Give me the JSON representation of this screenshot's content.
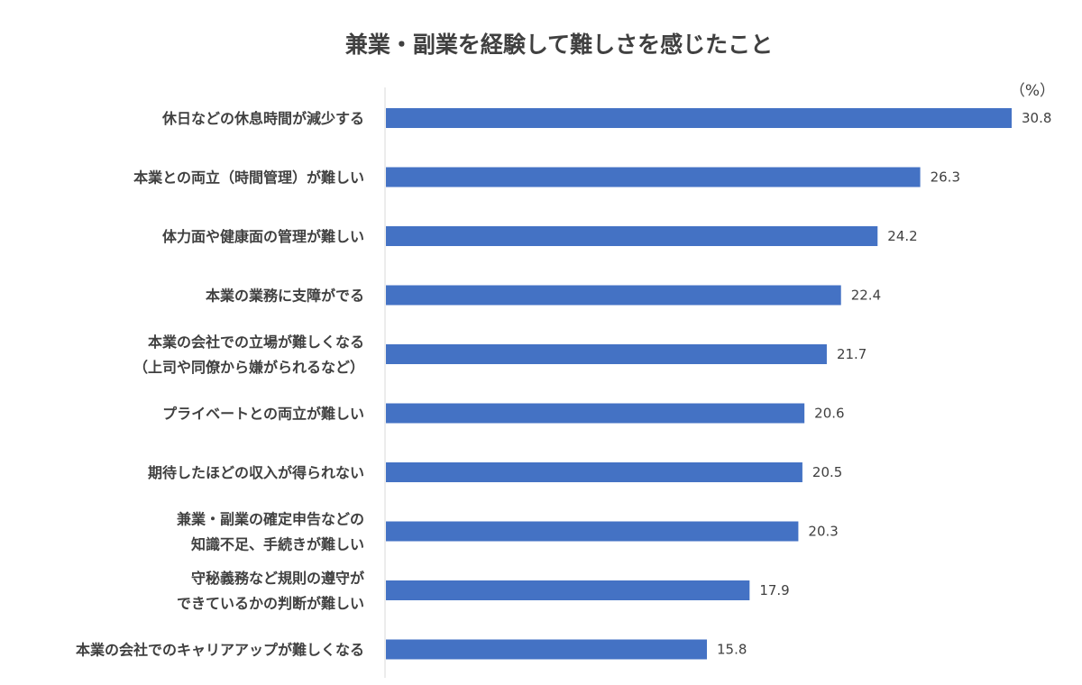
{
  "chart_data": {
    "type": "bar",
    "orientation": "horizontal",
    "title": "兼業・副業を経験して難しさを感じたこと",
    "unit": "（%）",
    "xlim": [
      0,
      31
    ],
    "grid": false,
    "legend": "none",
    "bar_color": "#4472C4",
    "categories": [
      [
        "休日などの休息時間が減少する"
      ],
      [
        "本業との両立（時間管理）が難しい"
      ],
      [
        "体力面や健康面の管理が難しい"
      ],
      [
        "本業の業務に支障がでる"
      ],
      [
        "本業の会社での立場が難しくなる",
        "（上司や同僚から嫌がられるなど）"
      ],
      [
        "プライベートとの両立が難しい"
      ],
      [
        "期待したほどの収入が得られない"
      ],
      [
        "兼業・副業の確定申告などの",
        "知識不足、手続きが難しい"
      ],
      [
        "守秘義務など規則の遵守が",
        "できているかの判断が難しい"
      ],
      [
        "本業の会社でのキャリアアップが難しくなる"
      ]
    ],
    "values": [
      30.8,
      26.3,
      24.2,
      22.4,
      21.7,
      20.6,
      20.5,
      20.3,
      17.9,
      15.8
    ]
  }
}
